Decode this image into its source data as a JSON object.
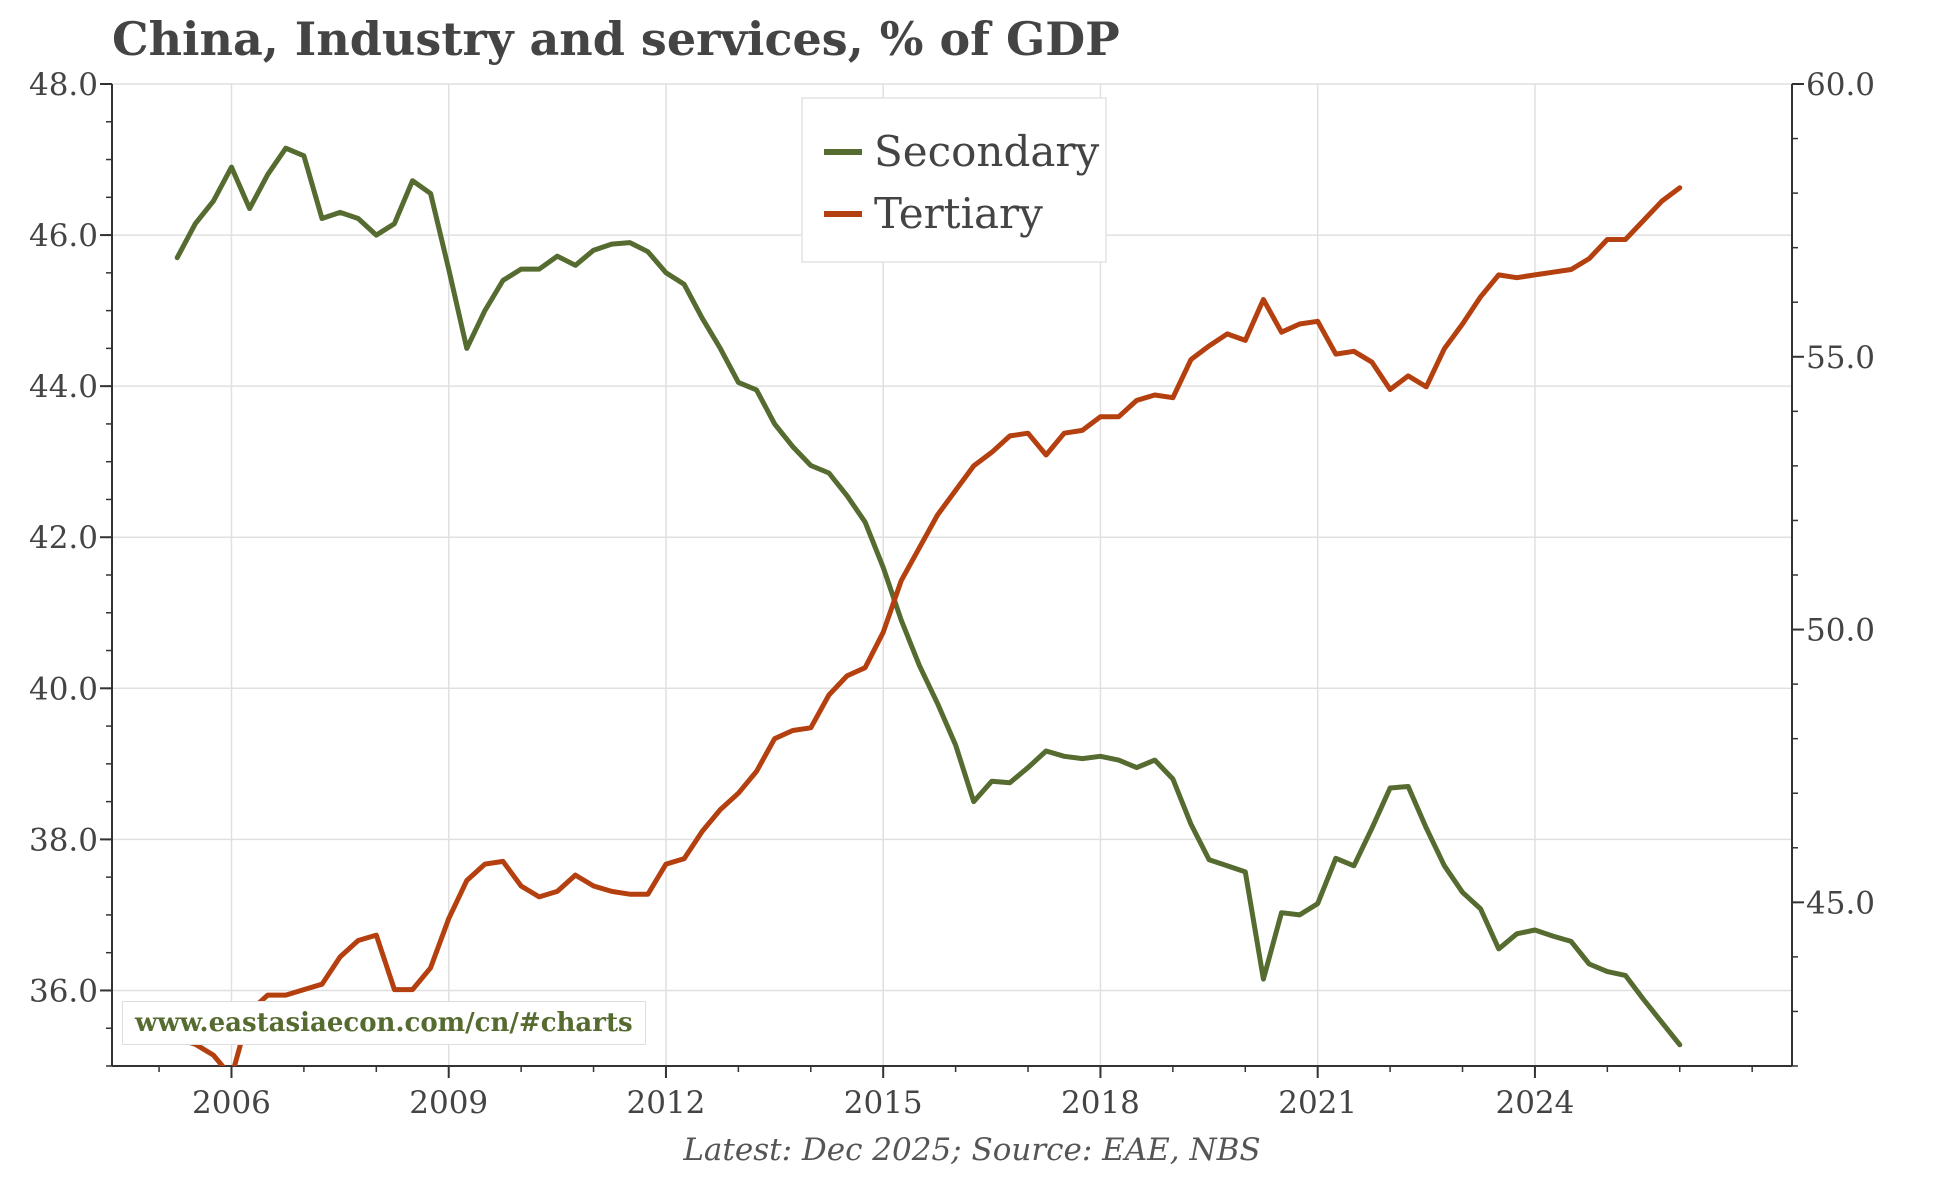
{
  "title": "China, Industry and services, % of GDP",
  "source_note": "Latest: Dec 2025; Source: EAE, NBS",
  "watermark": "www.eastasiaecon.com/cn/#charts",
  "colors": {
    "secondary": "#556B2F",
    "tertiary": "#B5400F",
    "text": "#444444",
    "grid": "#e0e0e0"
  },
  "chart_data": {
    "type": "line",
    "title": "China, Industry and services, % of GDP",
    "x_ticks": [
      "2006",
      "2009",
      "2012",
      "2015",
      "2018",
      "2021",
      "2024"
    ],
    "x_range": [
      2004.35,
      2027.55
    ],
    "y_left": {
      "range": [
        35.0,
        48.0
      ],
      "ticks": [
        "36.0",
        "38.0",
        "40.0",
        "42.0",
        "44.0",
        "46.0",
        "48.0"
      ],
      "series": "Secondary"
    },
    "y_right": {
      "range": [
        42.0,
        60.0
      ],
      "ticks": [
        "45.0",
        "50.0",
        "55.0",
        "60.0"
      ],
      "series": "Tertiary"
    },
    "grid": true,
    "legend": {
      "placement": "top-center",
      "entries": [
        "Secondary",
        "Tertiary"
      ]
    },
    "x": [
      2005.25,
      2005.5,
      2005.75,
      2006.0,
      2006.25,
      2006.5,
      2006.75,
      2007.0,
      2007.25,
      2007.5,
      2007.75,
      2008.0,
      2008.25,
      2008.5,
      2008.75,
      2009.0,
      2009.25,
      2009.5,
      2009.75,
      2010.0,
      2010.25,
      2010.5,
      2010.75,
      2011.0,
      2011.25,
      2011.5,
      2011.75,
      2012.0,
      2012.25,
      2012.5,
      2012.75,
      2013.0,
      2013.25,
      2013.5,
      2013.75,
      2014.0,
      2014.25,
      2014.5,
      2014.75,
      2015.0,
      2015.25,
      2015.5,
      2015.75,
      2016.0,
      2016.25,
      2016.5,
      2016.75,
      2017.0,
      2017.25,
      2017.5,
      2017.75,
      2018.0,
      2018.25,
      2018.5,
      2018.75,
      2019.0,
      2019.25,
      2019.5,
      2019.75,
      2020.0,
      2020.25,
      2020.5,
      2020.75,
      2021.0,
      2021.25,
      2021.5,
      2021.75,
      2022.0,
      2022.25,
      2022.5,
      2022.75,
      2023.0,
      2023.25,
      2023.5,
      2023.75,
      2024.0,
      2024.25,
      2024.5,
      2024.75,
      2025.0,
      2025.25,
      2025.5,
      2025.75,
      2026.0
    ],
    "series": [
      {
        "name": "Secondary",
        "axis": "left",
        "values": [
          45.7,
          46.15,
          46.45,
          46.9,
          46.35,
          46.8,
          47.15,
          47.05,
          46.22,
          46.3,
          46.22,
          46.0,
          46.15,
          46.72,
          46.55,
          45.55,
          44.5,
          45.0,
          45.4,
          45.55,
          45.55,
          45.72,
          45.6,
          45.8,
          45.88,
          45.9,
          45.78,
          45.5,
          45.35,
          44.9,
          44.5,
          44.05,
          43.95,
          43.5,
          43.2,
          42.95,
          42.85,
          42.55,
          42.2,
          41.6,
          40.9,
          40.3,
          39.8,
          39.25,
          38.5,
          38.77,
          38.75,
          38.95,
          39.17,
          39.1,
          39.07,
          39.1,
          39.05,
          38.95,
          39.05,
          38.8,
          38.2,
          37.73,
          37.65,
          37.57,
          36.15,
          37.03,
          37.0,
          37.15,
          37.75,
          37.65,
          38.15,
          38.68,
          38.7,
          38.15,
          37.65,
          37.3,
          37.08,
          36.55,
          36.75,
          36.8,
          36.72,
          36.65,
          36.35,
          36.25,
          36.2,
          35.88,
          35.58,
          35.28
        ]
      },
      {
        "name": "Tertiary",
        "axis": "right",
        "values": [
          42.5,
          42.4,
          42.2,
          41.8,
          43.0,
          43.3,
          43.3,
          43.4,
          43.5,
          44.0,
          44.3,
          44.4,
          43.4,
          43.4,
          43.8,
          44.7,
          45.4,
          45.7,
          45.75,
          45.3,
          45.1,
          45.2,
          45.5,
          45.3,
          45.2,
          45.15,
          45.15,
          45.7,
          45.8,
          46.3,
          46.7,
          47.0,
          47.4,
          48.0,
          48.15,
          48.2,
          48.8,
          49.15,
          49.3,
          49.95,
          50.9,
          51.5,
          52.1,
          52.55,
          53.0,
          53.25,
          53.55,
          53.6,
          53.2,
          53.6,
          53.65,
          53.9,
          53.9,
          54.2,
          54.3,
          54.25,
          54.95,
          55.2,
          55.42,
          55.3,
          56.05,
          55.45,
          55.6,
          55.65,
          55.05,
          55.1,
          54.9,
          54.4,
          54.65,
          54.45,
          55.15,
          55.6,
          56.1,
          56.5,
          56.45,
          56.5,
          56.55,
          56.6,
          56.8,
          57.15,
          57.15,
          57.5,
          57.85,
          58.1
        ]
      }
    ]
  }
}
